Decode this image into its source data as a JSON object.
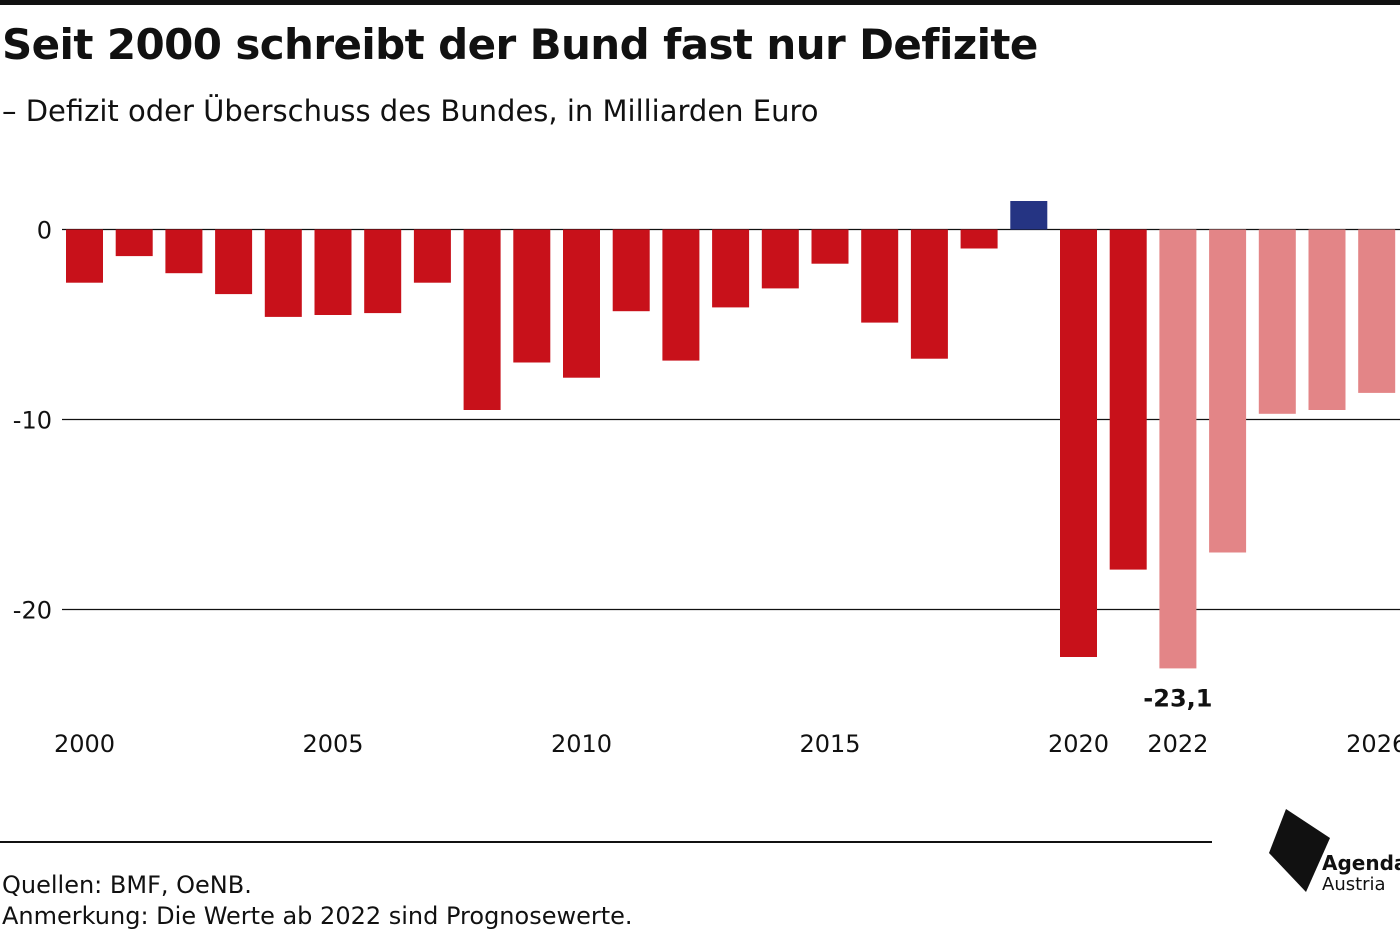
{
  "title": "Seit 2000 schreibt der Bund fast nur Defizite",
  "subtitle": "– Defizit oder Überschuss des Bundes, in Milliarden Euro",
  "footnotes": {
    "sources": "Quellen: BMF, OeNB.",
    "note": "Anmerkung: Die Werte ab 2022 sind Prognosewerte."
  },
  "logo": {
    "line1": "Agenda",
    "line2": "Austria"
  },
  "colors": {
    "deficit": "#c8111a",
    "surplus": "#253483",
    "forecast": "#e38587",
    "text": "#111111",
    "grid": "#111111"
  },
  "chart_data": {
    "type": "bar",
    "title": "Seit 2000 schreibt der Bund fast nur Defizite",
    "subtitle": "– Defizit oder Überschuss des Bundes, in Milliarden Euro",
    "xlabel": "",
    "ylabel": "",
    "ylim": [
      -26,
      2.5
    ],
    "yticks": [
      0,
      -10,
      -20
    ],
    "ytick_labels": [
      "0",
      "-10",
      "-20"
    ],
    "grid": true,
    "categories": [
      2000,
      2001,
      2002,
      2003,
      2004,
      2005,
      2006,
      2007,
      2008,
      2009,
      2010,
      2011,
      2012,
      2013,
      2014,
      2015,
      2016,
      2017,
      2018,
      2019,
      2020,
      2021,
      2022,
      2023,
      2024,
      2025,
      2026
    ],
    "xtick_labels": [
      {
        "year": 2000,
        "label": "2000"
      },
      {
        "year": 2005,
        "label": "2005"
      },
      {
        "year": 2010,
        "label": "2010"
      },
      {
        "year": 2015,
        "label": "2015"
      },
      {
        "year": 2020,
        "label": "2020"
      },
      {
        "year": 2022,
        "label": "2022"
      },
      {
        "year": 2026,
        "label": "2026"
      }
    ],
    "values": [
      -2.8,
      -1.4,
      -2.3,
      -3.4,
      -4.6,
      -4.5,
      -4.4,
      -2.8,
      -9.5,
      -7.0,
      -7.8,
      -4.3,
      -6.9,
      -4.1,
      -3.1,
      -1.8,
      -4.9,
      -6.8,
      -1.0,
      1.5,
      -22.5,
      -17.9,
      -23.1,
      -17.0,
      -9.7,
      -9.5,
      -8.6
    ],
    "status": [
      "actual",
      "actual",
      "actual",
      "actual",
      "actual",
      "actual",
      "actual",
      "actual",
      "actual",
      "actual",
      "actual",
      "actual",
      "actual",
      "actual",
      "actual",
      "actual",
      "actual",
      "actual",
      "actual",
      "actual",
      "actual",
      "actual",
      "forecast",
      "forecast",
      "forecast",
      "forecast",
      "forecast"
    ],
    "annotations": [
      {
        "year": 2022,
        "text": "-23,1"
      }
    ]
  }
}
